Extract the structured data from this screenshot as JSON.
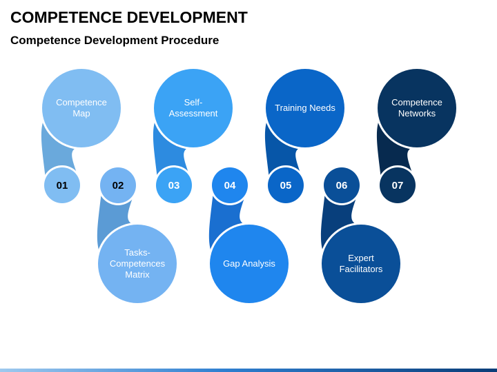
{
  "header": {
    "title": "COMPETENCE DEVELOPMENT",
    "subtitle": "Competence Development Procedure"
  },
  "steps": [
    {
      "number": "01",
      "label": [
        "Competence",
        "Map"
      ],
      "color": "#80bdf2",
      "tail": "#6aa9dc",
      "number_color": "#000000",
      "text_color": "#000000",
      "position": "top"
    },
    {
      "number": "02",
      "label": [
        "Tasks-",
        "Competences",
        "Matrix"
      ],
      "color": "#74b3f2",
      "tail": "#5b9bd5",
      "number_color": "#000000",
      "text_color": "#000000",
      "position": "bottom"
    },
    {
      "number": "03",
      "label": [
        "Self-",
        "Assessment"
      ],
      "color": "#3ba3f5",
      "tail": "#2d8be0",
      "number_color": "#ffffff",
      "text_color": "#ffffff",
      "position": "top"
    },
    {
      "number": "04",
      "label": [
        "Gap Analysis"
      ],
      "color": "#1f86ee",
      "tail": "#1a6fd0",
      "number_color": "#ffffff",
      "text_color": "#ffffff",
      "position": "bottom"
    },
    {
      "number": "05",
      "label": [
        "Training Needs"
      ],
      "color": "#0a66c8",
      "tail": "#0756a8",
      "number_color": "#ffffff",
      "text_color": "#ffffff",
      "position": "top"
    },
    {
      "number": "06",
      "label": [
        "Expert",
        "Facilitators"
      ],
      "color": "#0a4f98",
      "tail": "#083f7c",
      "number_color": "#ffffff",
      "text_color": "#ffffff",
      "position": "bottom"
    },
    {
      "number": "07",
      "label": [
        "Competence",
        "Networks"
      ],
      "color": "#083460",
      "tail": "#072a4f",
      "number_color": "#ffffff",
      "text_color": "#ffffff",
      "position": "top"
    }
  ]
}
